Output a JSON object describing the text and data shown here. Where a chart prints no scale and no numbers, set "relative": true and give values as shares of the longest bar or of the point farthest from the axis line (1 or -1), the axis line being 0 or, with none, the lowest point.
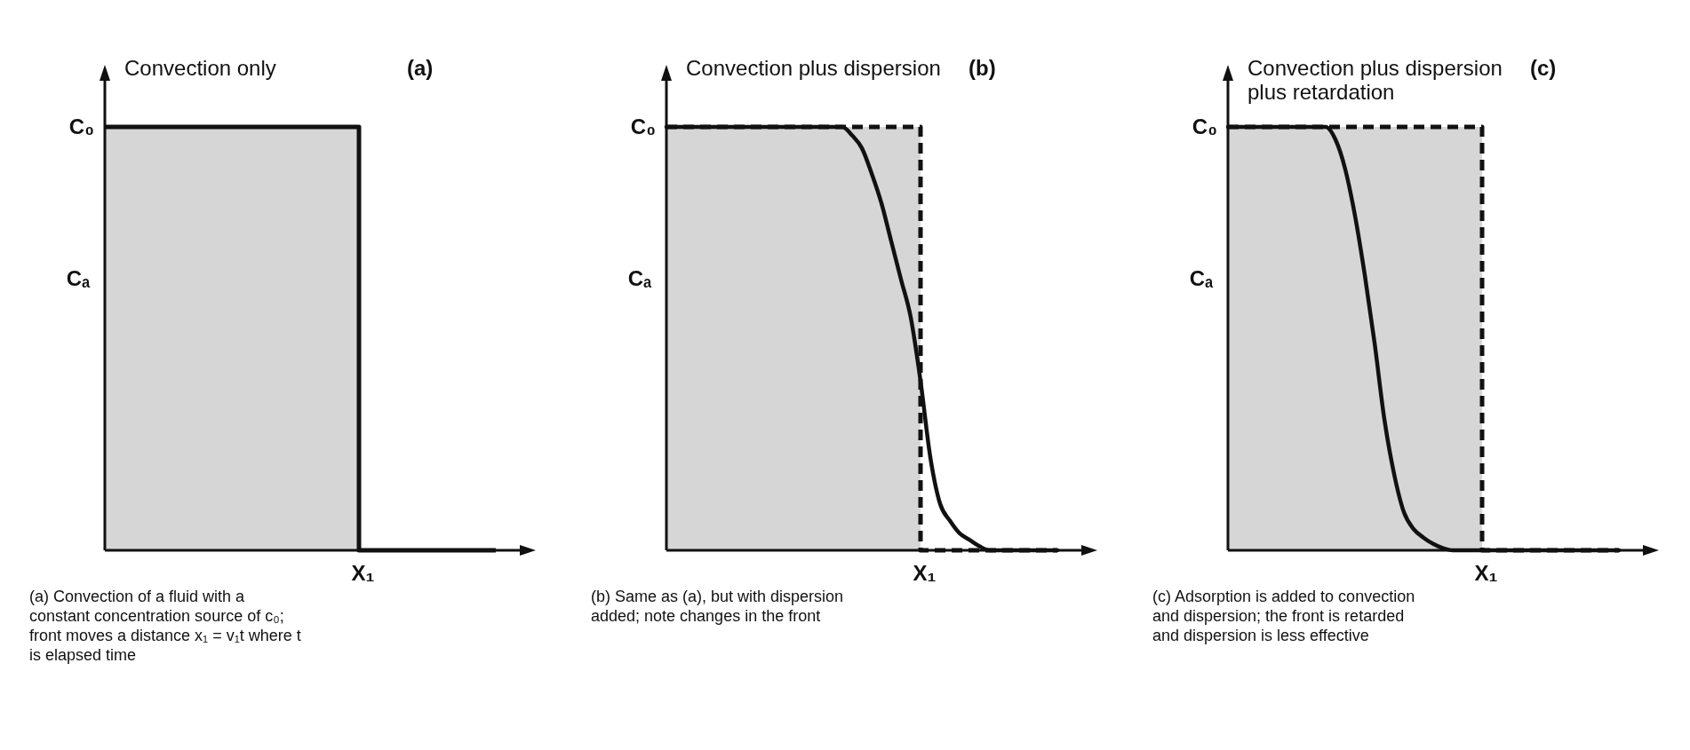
{
  "chart_data": [
    {
      "type": "step",
      "relative": true,
      "title": "Convection only",
      "xlabel": "X₁",
      "ylabel": "Cₐ",
      "annotations": [
        "(a)",
        "C₀",
        "(a) Convection of a fluid with a constant concentration source of c₀; front moves a distance x₁ = v₁t where t is elapsed time"
      ],
      "categories": [
        null,
        null,
        null,
        null,
        null,
        null,
        null,
        null,
        null,
        null,
        null,
        null,
        null,
        null,
        null,
        null,
        null,
        null,
        null,
        null,
        null,
        null,
        null,
        null,
        null,
        null,
        null,
        null,
        null,
        null,
        null,
        null,
        null,
        null,
        null,
        null,
        null,
        null,
        null,
        null,
        null
      ],
      "series": [
        {
          "color": "#111111",
          "values": [
            1,
            1,
            1,
            1,
            1,
            1,
            1,
            1,
            1,
            1,
            1,
            1,
            1,
            1,
            1,
            1,
            1,
            1,
            1,
            1,
            1,
            1,
            1,
            1,
            1,
            1,
            0,
            0,
            0,
            0,
            0,
            0,
            0,
            0,
            0,
            0,
            0,
            0,
            0,
            0,
            0
          ]
        }
      ]
    },
    {
      "type": "line",
      "relative": true,
      "title": "Convection plus dispersion",
      "xlabel": "X₁",
      "ylabel": "Cₐ",
      "annotations": [
        "(b)",
        "C₀",
        "(b) Same as (a), but with dispersion added; note changes in the front"
      ],
      "categories": [
        null,
        null,
        null,
        null,
        null,
        null,
        null,
        null,
        null,
        null,
        null,
        null,
        null,
        null,
        null,
        null,
        null,
        null,
        null,
        null,
        null,
        null,
        null,
        null,
        null,
        null,
        null,
        null,
        null,
        null,
        null,
        null,
        null,
        null,
        null,
        null,
        null,
        null,
        null,
        null,
        null
      ],
      "series": [
        {
          "type": "step",
          "line_style": "dashed",
          "color": "#111111",
          "values": [
            1,
            1,
            1,
            1,
            1,
            1,
            1,
            1,
            1,
            1,
            1,
            1,
            1,
            1,
            1,
            1,
            1,
            1,
            1,
            1,
            1,
            1,
            1,
            1,
            1,
            1,
            0,
            0,
            0,
            0,
            0,
            0,
            0,
            0,
            0,
            0,
            0,
            0,
            0,
            0,
            0
          ]
        },
        {
          "line_style": "solid",
          "color": "#111111",
          "values": [
            1,
            1,
            1,
            1,
            1,
            1,
            1,
            1,
            1,
            1,
            1,
            1,
            1,
            1,
            1,
            1,
            1,
            1,
            1,
            0.98,
            0.95,
            0.89,
            0.82,
            0.73,
            0.64,
            0.55,
            0.4,
            0.22,
            0.11,
            0.07,
            0.04,
            0.025,
            0.01,
            0,
            0,
            0,
            0,
            0,
            0,
            0,
            0
          ]
        }
      ]
    },
    {
      "type": "line",
      "relative": true,
      "title": "Convection plus dispersion plus retardation",
      "xlabel": "X₁",
      "ylabel": "Cₐ",
      "annotations": [
        "(c)",
        "C₀",
        "(c) Adsorption is added to convection and dispersion; the front is retarded and dispersion is less effective"
      ],
      "categories": [
        null,
        null,
        null,
        null,
        null,
        null,
        null,
        null,
        null,
        null,
        null,
        null,
        null,
        null,
        null,
        null,
        null,
        null,
        null,
        null,
        null,
        null,
        null,
        null,
        null,
        null,
        null,
        null,
        null,
        null,
        null,
        null,
        null,
        null,
        null,
        null,
        null,
        null,
        null,
        null,
        null
      ],
      "series": [
        {
          "type": "step",
          "line_style": "dashed",
          "color": "#111111",
          "values": [
            1,
            1,
            1,
            1,
            1,
            1,
            1,
            1,
            1,
            1,
            1,
            1,
            1,
            1,
            1,
            1,
            1,
            1,
            1,
            1,
            1,
            1,
            1,
            1,
            1,
            1,
            0,
            0,
            0,
            0,
            0,
            0,
            0,
            0,
            0,
            0,
            0,
            0,
            0,
            0,
            0
          ]
        },
        {
          "line_style": "solid",
          "color": "#111111",
          "values": [
            1,
            1,
            1,
            1,
            1,
            1,
            1,
            1,
            1,
            1,
            1,
            0.97,
            0.9,
            0.79,
            0.65,
            0.49,
            0.31,
            0.18,
            0.09,
            0.05,
            0.03,
            0.015,
            0.005,
            0,
            0,
            0,
            0,
            0,
            0,
            0,
            0,
            0,
            0,
            0,
            0,
            0,
            0,
            0,
            0,
            0,
            0
          ]
        }
      ]
    }
  ]
}
